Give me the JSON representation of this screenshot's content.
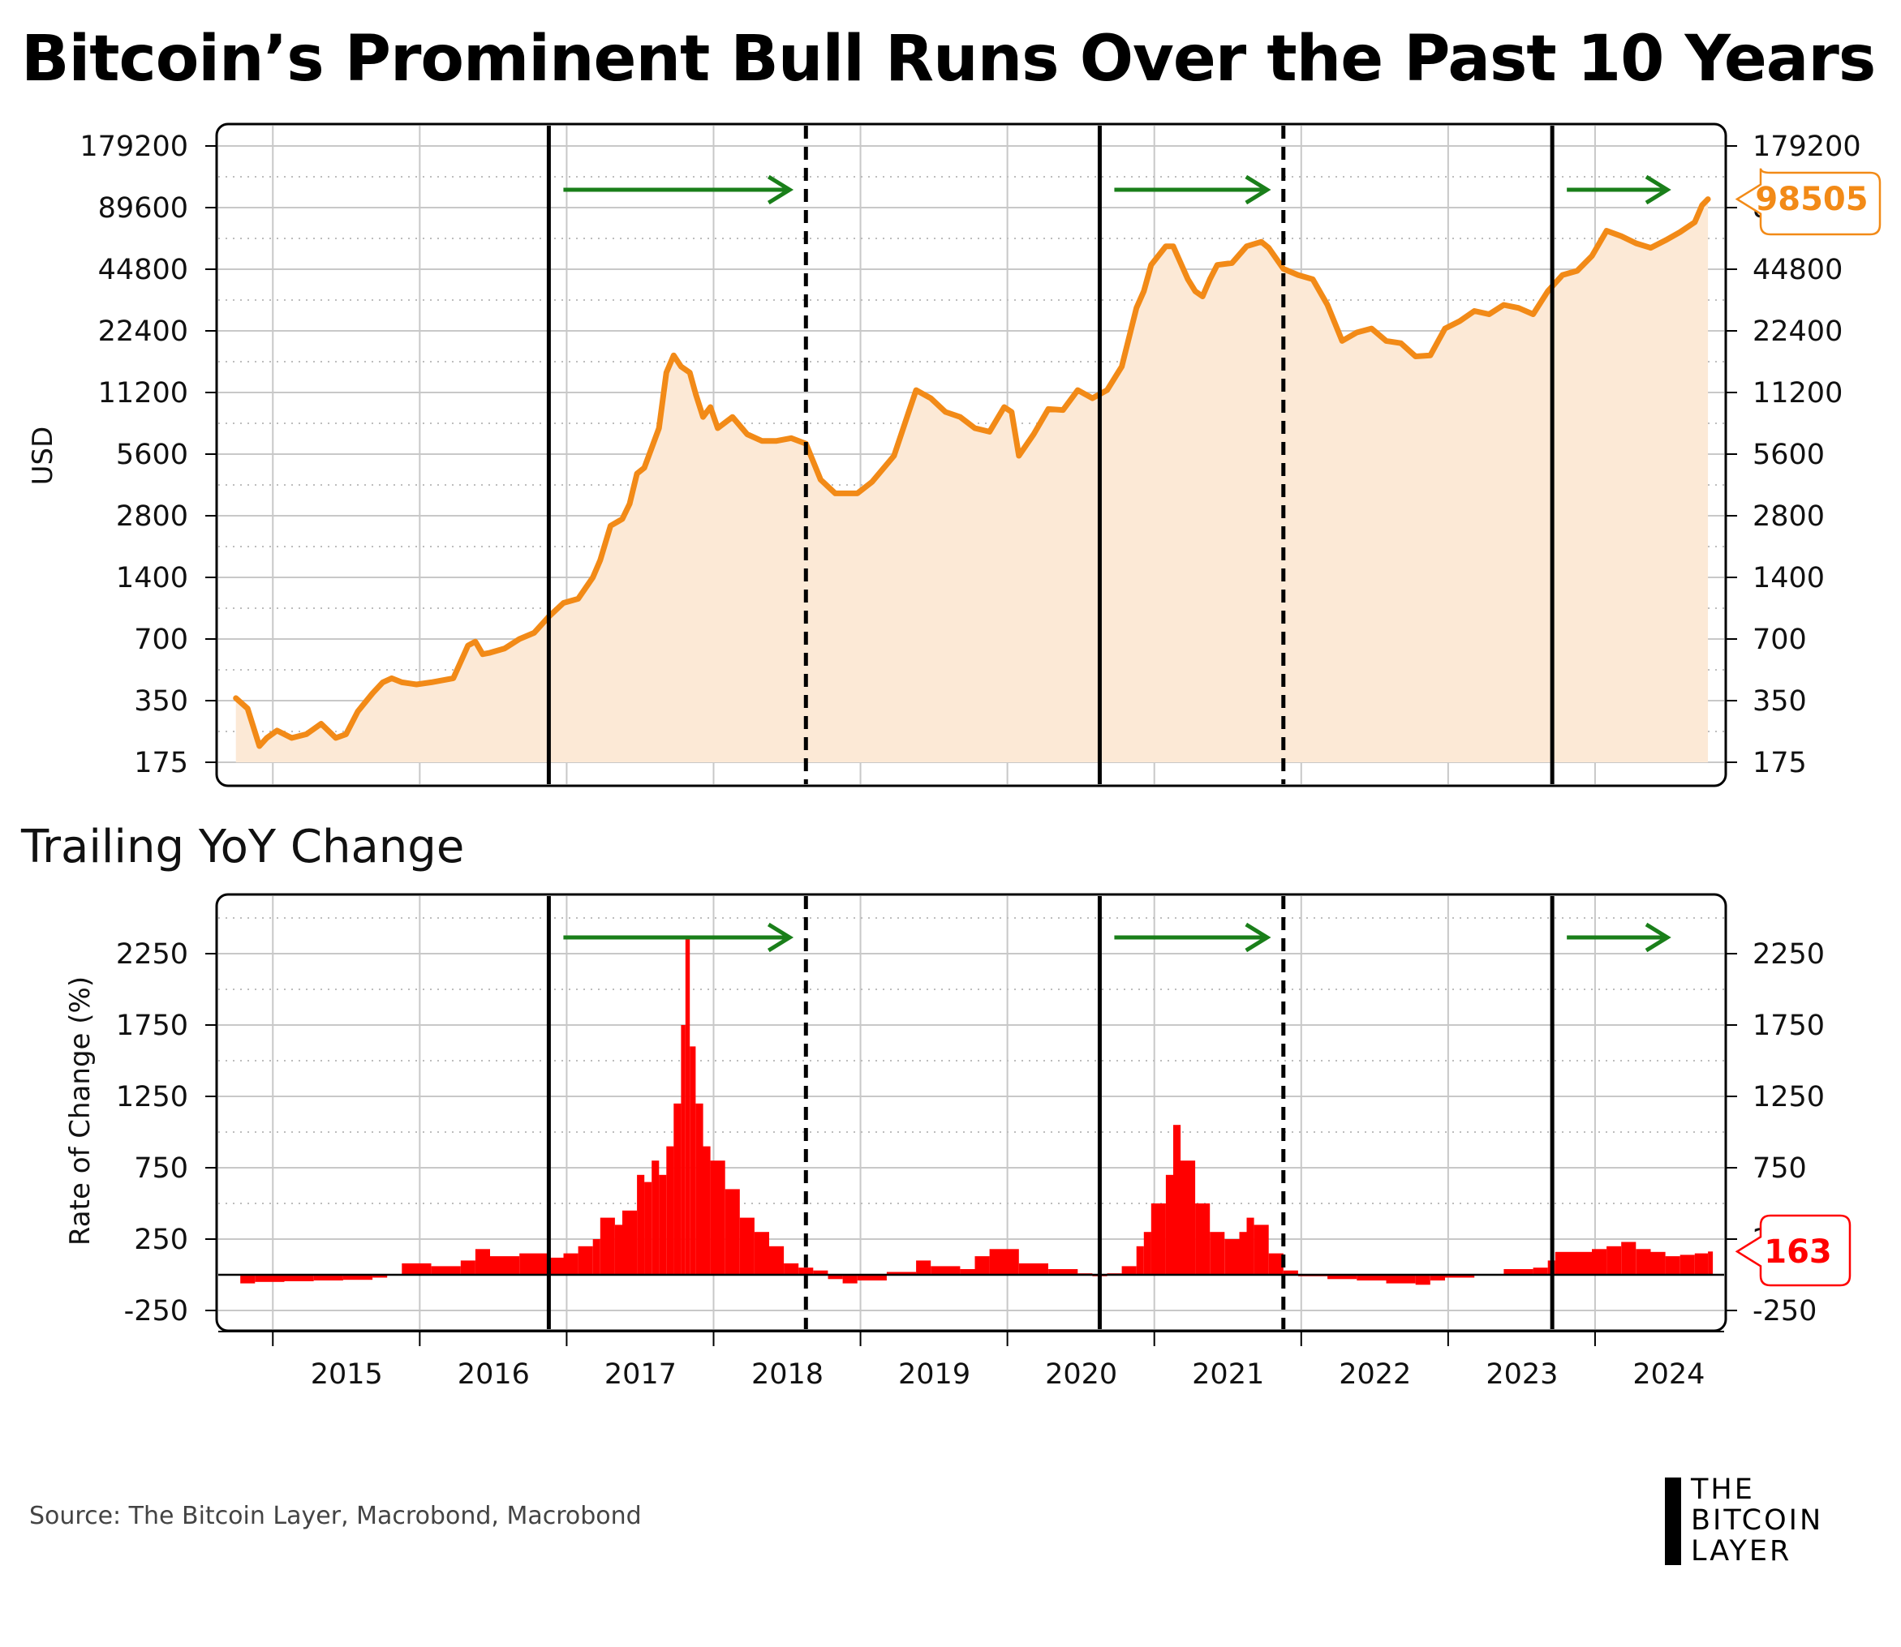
{
  "title": "Bitcoin’s Prominent Bull Runs Over the Past 10 Years",
  "source": "Source: The Bitcoin Layer, Macrobond, Macrobond",
  "logo": {
    "line1": "THE",
    "line2": "BITCOIN",
    "line3": "LAYER"
  },
  "colors": {
    "price": "#F28A17",
    "price_fill": "#FCE9D6",
    "roc": "#FF0000",
    "arrow": "#1A7F1A"
  },
  "chart_data": [
    {
      "type": "area",
      "ylabel": "USD",
      "yscale": "log",
      "ylim": [
        175,
        179200
      ],
      "yticks": [
        175,
        350,
        700,
        1400,
        2800,
        5600,
        11200,
        22400,
        44800,
        89600,
        179200
      ],
      "ytick_labels": [
        "175",
        "350",
        "700",
        "1400",
        "2800",
        "5600",
        "11200",
        "22400",
        "44800",
        "89600",
        "179200"
      ],
      "last_value_label": "98505",
      "x_years": [
        "2015",
        "2016",
        "2017",
        "2018",
        "2019",
        "2020",
        "2021",
        "2022",
        "2023",
        "2024"
      ],
      "bull_run_starts": [
        2017.0,
        2020.75,
        2023.83
      ],
      "bull_run_ends": [
        2018.75,
        2022.0
      ],
      "series": [
        {
          "x": [
            2014.87,
            2014.95,
            2015.03,
            2015.08,
            2015.15,
            2015.25,
            2015.35,
            2015.45,
            2015.55,
            2015.62,
            2015.7,
            2015.8,
            2015.87,
            2015.93,
            2016.0,
            2016.1,
            2016.2,
            2016.35,
            2016.45,
            2016.5,
            2016.55,
            2016.6,
            2016.7,
            2016.8,
            2016.9,
            2017.0,
            2017.1,
            2017.2,
            2017.3,
            2017.35,
            2017.42,
            2017.5,
            2017.55,
            2017.6,
            2017.65,
            2017.7,
            2017.75,
            2017.8,
            2017.85,
            2017.9,
            2017.96,
            2018.0,
            2018.05,
            2018.1,
            2018.15,
            2018.25,
            2018.35,
            2018.45,
            2018.55,
            2018.65,
            2018.75,
            2018.85,
            2018.95,
            2019.1,
            2019.2,
            2019.35,
            2019.45,
            2019.5,
            2019.6,
            2019.7,
            2019.8,
            2019.9,
            2020.0,
            2020.1,
            2020.15,
            2020.2,
            2020.3,
            2020.4,
            2020.5,
            2020.6,
            2020.7,
            2020.8,
            2020.9,
            2021.0,
            2021.05,
            2021.1,
            2021.2,
            2021.25,
            2021.35,
            2021.4,
            2021.45,
            2021.5,
            2021.55,
            2021.65,
            2021.75,
            2021.85,
            2021.9,
            2022.0,
            2022.1,
            2022.2,
            2022.3,
            2022.4,
            2022.5,
            2022.6,
            2022.7,
            2022.8,
            2022.9,
            2023.0,
            2023.1,
            2023.2,
            2023.3,
            2023.4,
            2023.5,
            2023.6,
            2023.7,
            2023.8,
            2023.9,
            2024.0,
            2024.1,
            2024.2,
            2024.3,
            2024.4,
            2024.5,
            2024.6,
            2024.7,
            2024.8,
            2024.85,
            2024.89
          ],
          "y": [
            360,
            320,
            210,
            230,
            250,
            230,
            240,
            270,
            230,
            240,
            310,
            380,
            430,
            450,
            430,
            420,
            430,
            450,
            650,
            680,
            590,
            600,
            630,
            700,
            750,
            900,
            1050,
            1100,
            1400,
            1700,
            2500,
            2700,
            3200,
            4500,
            4800,
            6000,
            7500,
            14000,
            17000,
            15000,
            14000,
            11000,
            8500,
            9500,
            7500,
            8500,
            7000,
            6500,
            6500,
            6700,
            6300,
            4200,
            3600,
            3600,
            4100,
            5500,
            9000,
            11500,
            10500,
            9000,
            8500,
            7500,
            7200,
            9500,
            9000,
            5500,
            7000,
            9300,
            9200,
            11500,
            10500,
            11500,
            15000,
            29000,
            35000,
            47000,
            58000,
            58000,
            40000,
            35000,
            33000,
            40000,
            47000,
            48000,
            58000,
            61000,
            57000,
            45000,
            42000,
            40000,
            30000,
            20000,
            22000,
            23000,
            20000,
            19500,
            16800,
            17000,
            23000,
            25000,
            28000,
            27000,
            30000,
            29000,
            27000,
            35000,
            42000,
            44000,
            52000,
            69000,
            65000,
            60000,
            57000,
            62000,
            68000,
            76000,
            92000,
            98505
          ]
        }
      ]
    },
    {
      "type": "bar",
      "title": "Trailing YoY Change",
      "ylabel": "Rate of Change (%)",
      "ylim": [
        -400,
        2700
      ],
      "yticks": [
        -250,
        250,
        750,
        1250,
        1750,
        2250
      ],
      "ytick_labels": [
        "-250",
        "250",
        "750",
        "1250",
        "1750",
        "2250"
      ],
      "last_value_label": "163",
      "series": [
        {
          "x": [
            2014.9,
            2015.0,
            2015.2,
            2015.4,
            2015.6,
            2015.8,
            2015.9,
            2016.0,
            2016.2,
            2016.4,
            2016.5,
            2016.6,
            2016.8,
            2017.0,
            2017.1,
            2017.2,
            2017.3,
            2017.35,
            2017.45,
            2017.5,
            2017.6,
            2017.65,
            2017.7,
            2017.75,
            2017.8,
            2017.85,
            2017.9,
            2017.93,
            2017.96,
            2018.0,
            2018.05,
            2018.1,
            2018.2,
            2018.3,
            2018.4,
            2018.5,
            2018.6,
            2018.7,
            2018.8,
            2018.9,
            2019.0,
            2019.1,
            2019.3,
            2019.5,
            2019.6,
            2019.8,
            2019.9,
            2020.0,
            2020.2,
            2020.4,
            2020.6,
            2020.7,
            2020.8,
            2020.9,
            2021.0,
            2021.05,
            2021.1,
            2021.2,
            2021.25,
            2021.3,
            2021.4,
            2021.5,
            2021.6,
            2021.7,
            2021.75,
            2021.8,
            2021.9,
            2022.0,
            2022.1,
            2022.3,
            2022.5,
            2022.7,
            2022.9,
            2023.0,
            2023.1,
            2023.3,
            2023.5,
            2023.7,
            2023.8,
            2023.85,
            2024.0,
            2024.1,
            2024.2,
            2024.3,
            2024.4,
            2024.5,
            2024.6,
            2024.7,
            2024.8,
            2024.89
          ],
          "y": [
            -60,
            -50,
            -45,
            -40,
            -35,
            -20,
            0,
            80,
            60,
            100,
            180,
            130,
            150,
            120,
            150,
            200,
            250,
            400,
            350,
            450,
            700,
            650,
            800,
            700,
            900,
            1200,
            1750,
            2350,
            1600,
            1200,
            900,
            800,
            600,
            400,
            300,
            200,
            80,
            50,
            30,
            -30,
            -60,
            -40,
            20,
            100,
            60,
            40,
            130,
            180,
            80,
            40,
            10,
            -10,
            10,
            60,
            200,
            300,
            500,
            700,
            1050,
            800,
            500,
            300,
            250,
            300,
            400,
            350,
            150,
            30,
            -10,
            -30,
            -40,
            -60,
            -70,
            -40,
            -20,
            0,
            40,
            50,
            100,
            160,
            160,
            180,
            200,
            230,
            180,
            160,
            130,
            140,
            150,
            163
          ]
        }
      ]
    }
  ]
}
